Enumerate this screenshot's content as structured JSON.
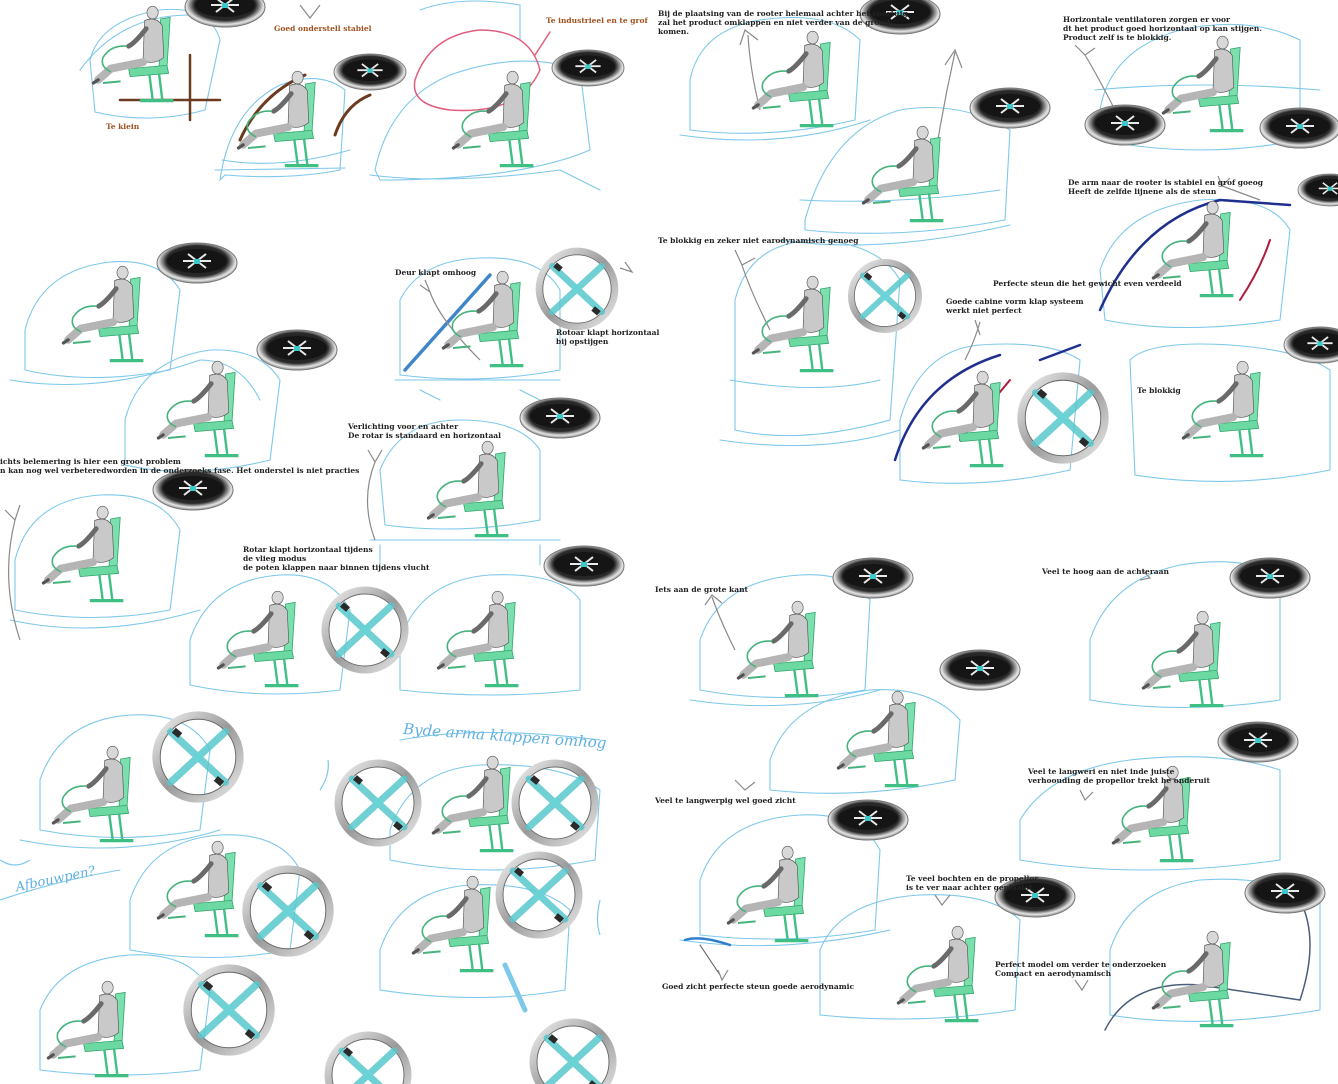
{
  "colors": {
    "sketch": "#7ec8ea",
    "sketch_dark": "#3f86c9",
    "seat": "#5fd69b",
    "figure": "#9a9a9a",
    "rotor_dark": "#1d1d1d",
    "rotor_rim": "#c9c9c9",
    "rotor_blade": "#4cc3c9",
    "annot_red": "#e25d7c",
    "annot_brown": "#6b3a1f",
    "navy": "#1f2f8f",
    "crimson": "#b01b3c"
  },
  "notes": [
    {
      "id": "n1",
      "text": "Goed onderstell stabiel",
      "brown": true
    },
    {
      "id": "n2",
      "text": "Te industrieel en te grof",
      "brown": true
    },
    {
      "id": "n3",
      "text": "Te klein",
      "brown": true
    },
    {
      "id": "n4",
      "text": "Bij de plaatsing van de rooter helemaal achter het voortuig\nzal het product omklappen en niet verder van de grond\nkomen."
    },
    {
      "id": "n5",
      "text": "Horizontale ventilatoren zorgen er voor\ndt het product  goed horizontaal op kan stijgen.\nProduct zelf is te blokkig."
    },
    {
      "id": "n6",
      "text": "Te blokkig en zeker niet earodynamisch genoeg"
    },
    {
      "id": "n7",
      "text": "De arm naar de rooter is stabiel en grof goeog\nHeeft de zelfde lijnene als de steun"
    },
    {
      "id": "n8",
      "text": "Perfecte steun die het gewicht even verdeeld"
    },
    {
      "id": "n9",
      "text": "Goede cabine vorm klap systeem\nwerkt niet perfect"
    },
    {
      "id": "n10",
      "text": "Te blokkig"
    },
    {
      "id": "n11",
      "text": "Deur klapt omhoog"
    },
    {
      "id": "n12",
      "text": "Rotoar klapt horizontaal\nbij opstijgen"
    },
    {
      "id": "n13",
      "text": "Verlichting voor en achter\nDe rotar is standaard en horizontaal"
    },
    {
      "id": "n14",
      "text": "ichts belemering is hier een groot problem\nn kan nog wel verbeteredworden in de onderzoeks fase. Het onderstel is niet practies"
    },
    {
      "id": "n15",
      "text": "Rotar klapt horizontaal tijdens\nde vlieg modus\nde poten klappen naar binnen tijdens vlucht"
    },
    {
      "id": "n16",
      "text": "Iets aan de grote kant"
    },
    {
      "id": "n17",
      "text": "Veel te hoog aan de achteraan"
    },
    {
      "id": "n18",
      "text": "Veel te langwerpig wel goed zicht"
    },
    {
      "id": "n19",
      "text": "Veel te langweri en niet inde juiste\nverhoouding de propellor trekt he onderuit"
    },
    {
      "id": "n20",
      "text": "Te veel bochten en de propellor\nis te ver naar achter geplaatst"
    },
    {
      "id": "n21",
      "text": "Perfect model om verder te onderzoeken\nCompact en aerodynamisch"
    },
    {
      "id": "n22",
      "text": "Goed zicht perfecte steun goede aerodynamic"
    }
  ],
  "handwriting": [
    {
      "id": "h1",
      "text": "Byde arma   klappen omhog"
    },
    {
      "id": "h2",
      "text": "Afbouwpen?"
    }
  ]
}
